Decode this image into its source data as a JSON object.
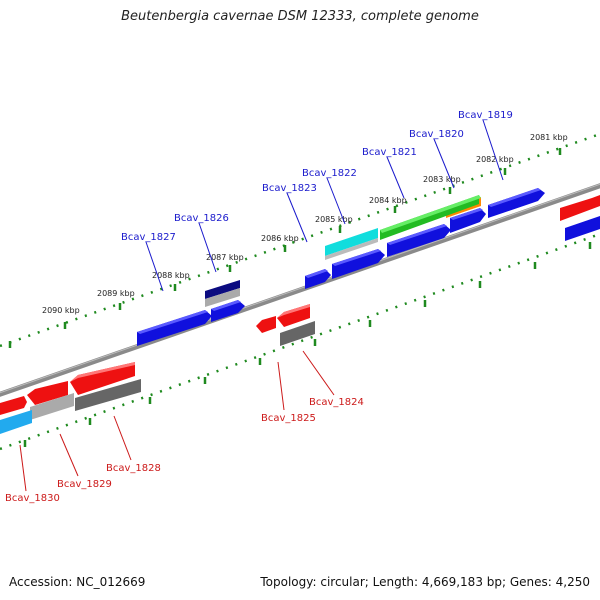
{
  "title": "Beutenbergia cavernae DSM 12333, complete genome",
  "footer": {
    "accession": "Accession: NC_012669",
    "summary": "Topology: circular; Length: 4,669,183 bp; Genes: 4,250"
  },
  "colors": {
    "backbone": "#8a8a8a",
    "tick": "#1f8a1f",
    "label_top": "#1a1acc",
    "label_bottom": "#cc1a1a",
    "gene_blue": "#1010dd",
    "gene_red": "#ee1111",
    "gene_navy": "#0b0b80",
    "gene_cyan": "#11dddd",
    "gene_skyblue": "#22aaee",
    "gene_green": "#22bb22",
    "gene_orange": "#ff8800",
    "gene_grey": "#666666",
    "gene_lightgrey": "#aaaaaa"
  },
  "scale_labels": [
    "2081 kbp",
    "2082 kbp",
    "2083 kbp",
    "2084 kbp",
    "2085 kbp",
    "2086 kbp",
    "2087 kbp",
    "2088 kbp",
    "2089 kbp",
    "2090 kbp"
  ],
  "genes_top": [
    "Bcav_1819",
    "Bcav_1820",
    "Bcav_1821",
    "Bcav_1822",
    "Bcav_1823",
    "Bcav_1826",
    "Bcav_1827"
  ],
  "genes_bottom": [
    "Bcav_1824",
    "Bcav_1825",
    "Bcav_1828",
    "Bcav_1829",
    "Bcav_1830"
  ]
}
